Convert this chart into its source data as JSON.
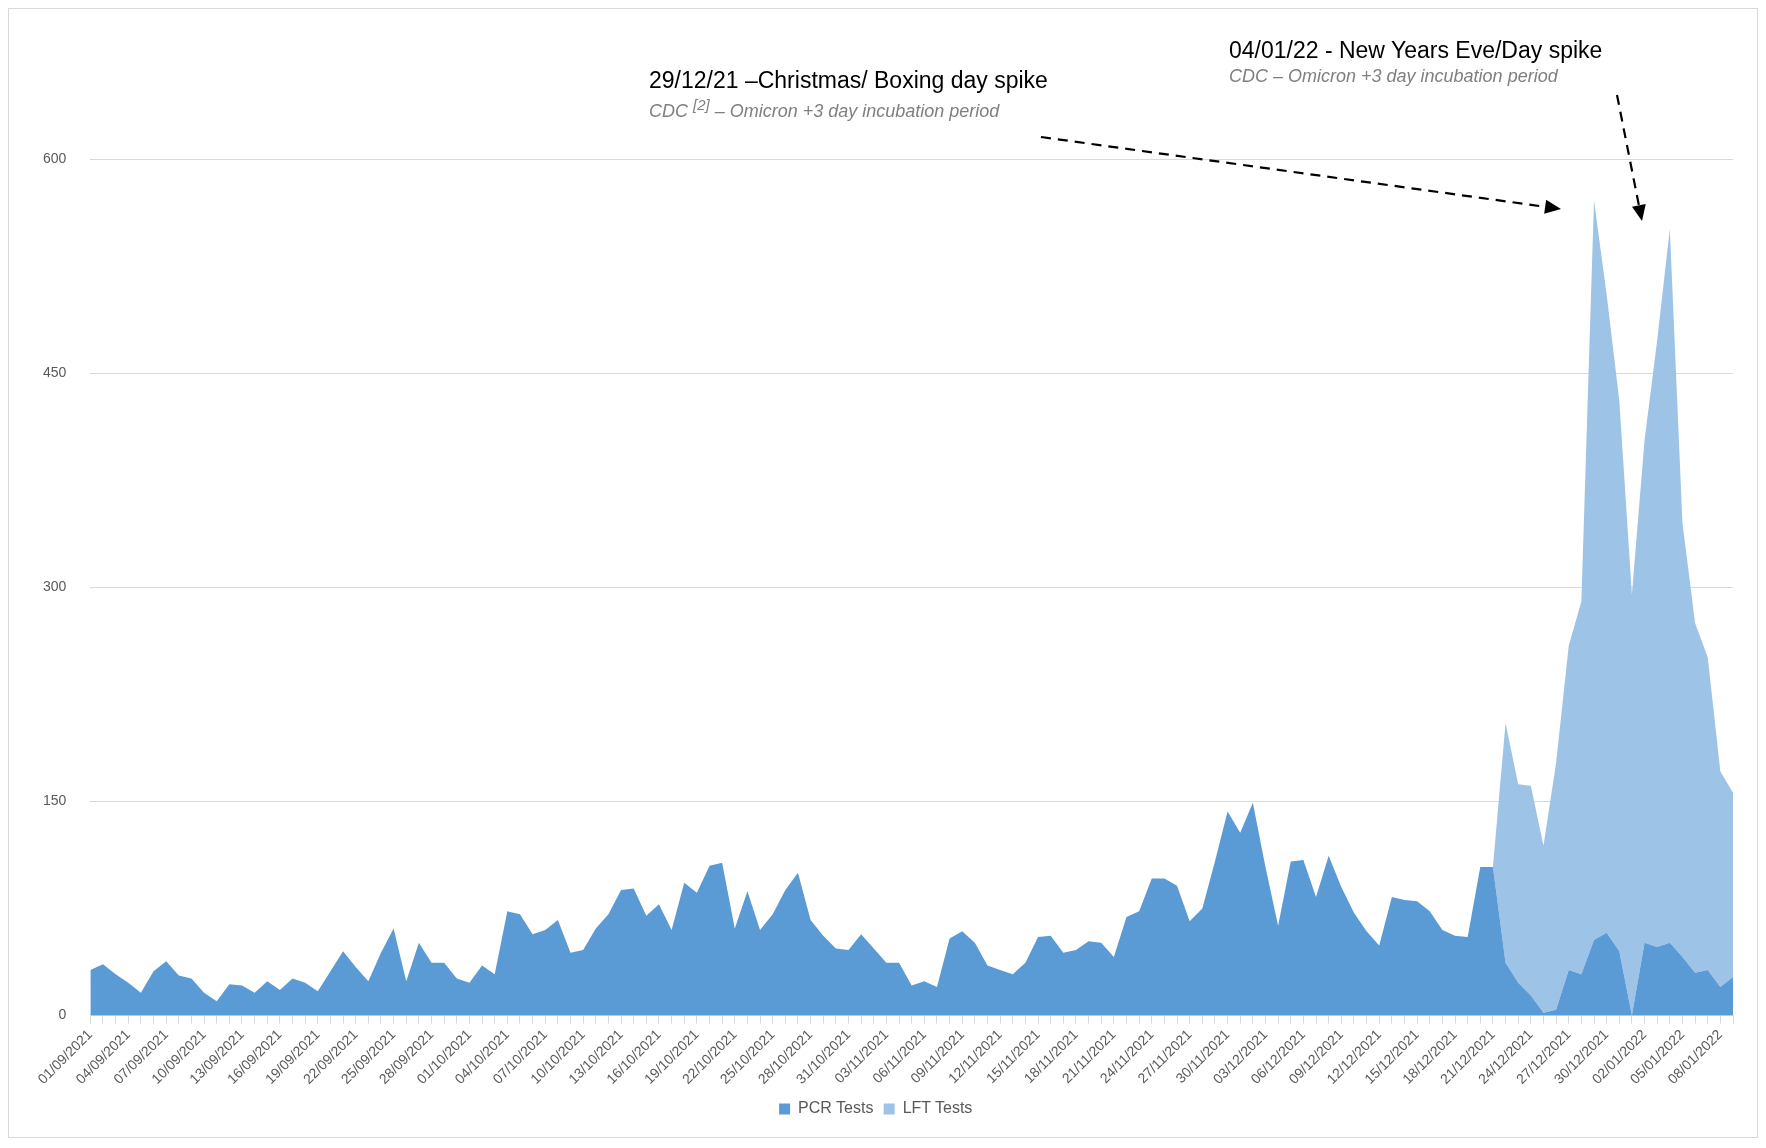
{
  "chart_data": {
    "type": "area",
    "stacked": true,
    "legend": "bottom",
    "grid": "y",
    "categories": [
      "01/09/2021",
      null,
      null,
      "04/09/2021",
      null,
      null,
      "07/09/2021",
      null,
      null,
      "10/09/2021",
      null,
      null,
      "13/09/2021",
      null,
      null,
      "16/09/2021",
      null,
      null,
      "19/09/2021",
      null,
      null,
      "22/09/2021",
      null,
      null,
      "25/09/2021",
      null,
      null,
      "28/09/2021",
      null,
      null,
      "01/10/2021",
      null,
      null,
      "04/10/2021",
      null,
      null,
      "07/10/2021",
      null,
      null,
      "10/10/2021",
      null,
      null,
      "13/10/2021",
      null,
      null,
      "16/10/2021",
      null,
      null,
      "19/10/2021",
      null,
      null,
      "22/10/2021",
      null,
      null,
      "25/10/2021",
      null,
      null,
      "28/10/2021",
      null,
      null,
      "31/10/2021",
      null,
      null,
      "03/11/2021",
      null,
      null,
      "06/11/2021",
      null,
      null,
      "09/11/2021",
      null,
      null,
      "12/11/2021",
      null,
      null,
      "15/11/2021",
      null,
      null,
      "18/11/2021",
      null,
      null,
      "21/11/2021",
      null,
      null,
      "24/11/2021",
      null,
      null,
      "27/11/2021",
      null,
      null,
      "30/11/2021",
      null,
      null,
      "03/12/2021",
      null,
      null,
      "06/12/2021",
      null,
      null,
      "09/12/2021",
      null,
      null,
      "12/12/2021",
      null,
      null,
      "15/12/2021",
      null,
      null,
      "18/12/2021",
      null,
      null,
      "21/12/2021",
      null,
      null,
      "24/12/2021",
      null,
      null,
      "27/12/2021",
      null,
      null,
      "30/12/2021",
      null,
      null,
      "02/01/2022",
      null,
      null,
      "05/01/2022",
      null,
      null,
      "08/01/2022",
      null
    ],
    "ylim": [
      0,
      600
    ],
    "yticks": [
      0,
      150,
      300,
      450,
      600
    ],
    "series": [
      {
        "name": "PCR Tests",
        "color": "#5b9bd5",
        "values": [
          32,
          36,
          29,
          23,
          16,
          31,
          38,
          28,
          26,
          16,
          10,
          22,
          21,
          16,
          24,
          18,
          26,
          23,
          17,
          31,
          45,
          34,
          24,
          44,
          61,
          24,
          51,
          37,
          37,
          26,
          23,
          35,
          29,
          73,
          71,
          57,
          60,
          67,
          44,
          46,
          61,
          71,
          88,
          89,
          70,
          78,
          60,
          93,
          86,
          105,
          107,
          61,
          87,
          60,
          71,
          88,
          100,
          67,
          56,
          47,
          46,
          57,
          47,
          37,
          37,
          21,
          24,
          20,
          54,
          59,
          51,
          35,
          32,
          29,
          37,
          55,
          56,
          44,
          46,
          52,
          51,
          41,
          69,
          73,
          96,
          96,
          91,
          66,
          75,
          108,
          143,
          128,
          149,
          104,
          63,
          108,
          109,
          83,
          112,
          90,
          72,
          59,
          49,
          83,
          81,
          80,
          73,
          60,
          56,
          55,
          104,
          104,
          37,
          23,
          14,
          2,
          4,
          32,
          29,
          53,
          58,
          45,
          0,
          51,
          48,
          51,
          41,
          30,
          32,
          20,
          27
        ]
      },
      {
        "name": "LFT Tests",
        "color": "#9dc3e6",
        "values": [
          null,
          null,
          null,
          null,
          null,
          null,
          null,
          null,
          null,
          null,
          null,
          null,
          null,
          null,
          null,
          null,
          null,
          null,
          null,
          null,
          null,
          null,
          null,
          null,
          null,
          null,
          null,
          null,
          null,
          null,
          null,
          null,
          null,
          null,
          null,
          null,
          null,
          null,
          null,
          null,
          null,
          null,
          null,
          null,
          null,
          null,
          null,
          null,
          null,
          null,
          null,
          null,
          null,
          null,
          null,
          null,
          null,
          null,
          null,
          null,
          null,
          null,
          null,
          null,
          null,
          null,
          null,
          null,
          null,
          null,
          null,
          null,
          null,
          null,
          null,
          null,
          null,
          null,
          null,
          null,
          null,
          null,
          null,
          null,
          null,
          null,
          null,
          null,
          null,
          null,
          null,
          null,
          null,
          null,
          null,
          null,
          null,
          null,
          null,
          null,
          null,
          null,
          null,
          null,
          null,
          null,
          null,
          null,
          null,
          null,
          null,
          0,
          168,
          139,
          147,
          117,
          173,
          227,
          261,
          518,
          447,
          386,
          295,
          352,
          425,
          500,
          304,
          245,
          219,
          151,
          129
        ]
      }
    ],
    "annotations": [
      "29/12/21 –Christmas/ Boxing day spike",
      "CDC $^{[2]}$ – Omicron +3 day incubation period",
      "04/01/22 - New Years Eve/Day spike",
      "CDC – Omicron +3 day incubation period"
    ]
  }
}
